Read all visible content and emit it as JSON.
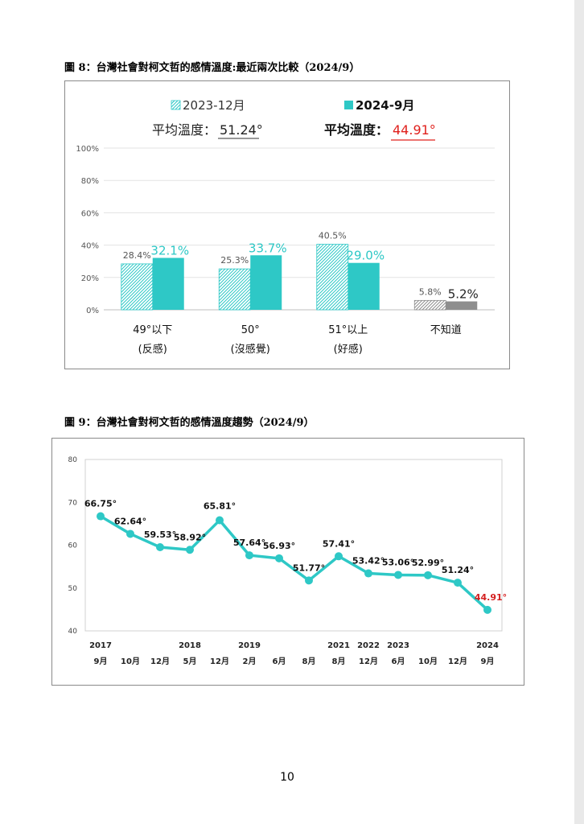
{
  "figure8": {
    "caption": "圖 8：台灣社會對柯文哲的感情溫度:最近兩次比較（2024/9）",
    "avg_prefix": "平均溫度：",
    "avg_values": [
      "51.24°",
      "44.91°"
    ]
  },
  "figure9": {
    "caption": "圖 9：台灣社會對柯文哲的感情溫度趨勢（2024/9）"
  },
  "colors": {
    "teal": "#2ec8c6",
    "gray": "#8e8e8e",
    "red": "#e0201c",
    "dark": "#1a1a1a",
    "hatch_teal": "#2ec8c6",
    "line": "#2ec8c6"
  },
  "chart_data": [
    {
      "type": "bar",
      "categories": [
        "49°以下",
        "50°",
        "51°以上",
        "不知道"
      ],
      "category_sublabels": [
        "(反感)",
        "(沒感覺)",
        "(好感)",
        ""
      ],
      "series": [
        {
          "name": "2023-12月",
          "values": [
            28.4,
            25.3,
            40.5,
            5.8
          ],
          "labels": [
            "28.4%",
            "25.3%",
            "40.5%",
            "5.8%"
          ]
        },
        {
          "name": "2024-9月",
          "values": [
            32.1,
            33.7,
            29.0,
            5.2
          ],
          "labels": [
            "32.1%",
            "33.7%",
            "29.0%",
            "5.2%"
          ]
        }
      ],
      "yticks": [
        "0%",
        "20%",
        "40%",
        "60%",
        "80%",
        "100%"
      ],
      "ylim": [
        0,
        100
      ],
      "grid": true,
      "legend": "top"
    },
    {
      "type": "line",
      "x": [
        "2017 9月",
        "10月",
        "12月",
        "2018 5月",
        "12月",
        "2019 2月",
        "6月",
        "8月",
        "2021 8月",
        "2022 12月",
        "2023 6月",
        "10月",
        "12月",
        "2024 9月"
      ],
      "x_year_labels": [
        "2017",
        "",
        "",
        "2018",
        "",
        "2019",
        "",
        "",
        "2021",
        "2022",
        "2023",
        "",
        "",
        "2024"
      ],
      "x_month_labels": [
        "9月",
        "10月",
        "12月",
        "5月",
        "12月",
        "2月",
        "6月",
        "8月",
        "8月",
        "12月",
        "6月",
        "10月",
        "12月",
        "9月"
      ],
      "values": [
        66.75,
        62.64,
        59.53,
        58.92,
        65.81,
        57.64,
        56.93,
        51.77,
        57.41,
        53.42,
        53.06,
        52.99,
        51.24,
        44.91
      ],
      "labels": [
        "66.75°",
        "62.64°",
        "59.53°",
        "58.92°",
        "65.81°",
        "57.64°",
        "56.93°",
        "51.77°",
        "57.41°",
        "53.42°",
        "53.06°",
        "52.99°",
        "51.24°",
        "44.91°"
      ],
      "yticks": [
        "40",
        "50",
        "60",
        "70",
        "80"
      ],
      "ylim": [
        40,
        80
      ],
      "grid": false
    }
  ],
  "page_number": "10"
}
